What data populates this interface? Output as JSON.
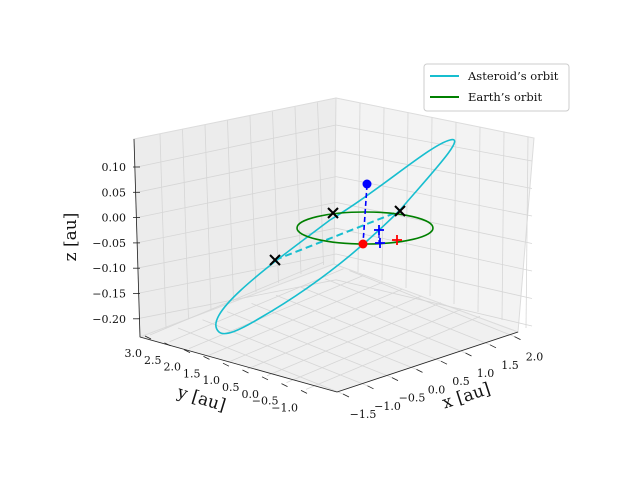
{
  "chart_data": {
    "type": "line",
    "projection": "3d",
    "xlabel": "x [au]",
    "ylabel": "y [au]",
    "zlabel": "z [au]",
    "x_ticks": [
      "−1.5",
      "−1.0",
      "−0.5",
      "0.0",
      "0.5",
      "1.0",
      "1.5",
      "2.0"
    ],
    "y_ticks": [
      "−1.0",
      "−0.5",
      "0.0",
      "0.5",
      "1.0",
      "1.5",
      "2.0",
      "2.5",
      "3.0"
    ],
    "z_ticks": [
      "−0.20",
      "−0.15",
      "−0.10",
      "−0.05",
      "0.00",
      "0.05",
      "0.10"
    ],
    "xlim": [
      -1.7,
      2.2
    ],
    "ylim": [
      -1.2,
      3.1
    ],
    "zlim": [
      -0.22,
      0.13
    ],
    "grid": true,
    "legend_position": "upper right",
    "series": [
      {
        "name": "Asteroid’s orbit",
        "color": "#17becf",
        "shape": "ellipse"
      },
      {
        "name": "Earth’s orbit",
        "color": "#008000",
        "shape": "circle"
      }
    ],
    "markers": [
      {
        "kind": "node-cross",
        "color": "#000000"
      },
      {
        "kind": "node-cross",
        "color": "#000000"
      },
      {
        "kind": "node-cross",
        "color": "#000000"
      },
      {
        "kind": "asteroid-point",
        "color": "#0000ff"
      },
      {
        "kind": "asteroid-projection",
        "color": "#ff0000"
      },
      {
        "kind": "plus",
        "color": "#0000ff"
      },
      {
        "kind": "plus",
        "color": "#0000ff"
      },
      {
        "kind": "plus",
        "color": "#ff0000"
      }
    ]
  }
}
